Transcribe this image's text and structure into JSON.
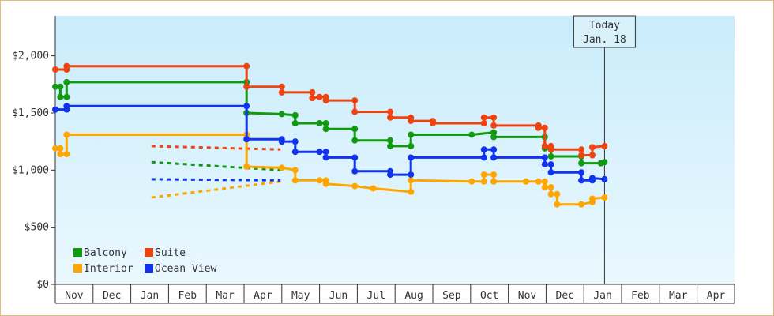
{
  "chart_data": {
    "type": "line",
    "title": "",
    "xlabel": "",
    "ylabel": "",
    "x_tick_labels": [
      "Nov",
      "Dec",
      "Jan",
      "Feb",
      "Mar",
      "Apr",
      "May",
      "Jun",
      "Jul",
      "Aug",
      "Sep",
      "Oct",
      "Nov",
      "Dec",
      "Jan",
      "Feb",
      "Mar",
      "Apr"
    ],
    "y_tick_labels": [
      "$0",
      "$500",
      "$1,000",
      "$1,500",
      "$2,000"
    ],
    "y_ticks": [
      0,
      500,
      1000,
      1500,
      2000
    ],
    "ylim": [
      0,
      2350
    ],
    "xlim": [
      "Nov 1",
      "Apr 30"
    ],
    "today_marker": {
      "line1": "Today",
      "line2": "Jan. 18",
      "date": "Jan 18"
    },
    "grid": false,
    "legend_position": "bottom-left",
    "series": [
      {
        "name": "Balcony",
        "color": "#119911",
        "points": [
          [
            "Nov 1",
            1730
          ],
          [
            "Nov 5",
            1730
          ],
          [
            "Nov 5",
            1640
          ],
          [
            "Nov 10",
            1640
          ],
          [
            "Nov 10",
            1770
          ],
          [
            "Apr 3",
            1770
          ],
          [
            "Apr 3",
            1500
          ],
          [
            "May 1",
            1490
          ],
          [
            "May 12",
            1480
          ],
          [
            "May 12",
            1410
          ],
          [
            "Jun 1",
            1410
          ],
          [
            "Jun 6",
            1410
          ],
          [
            "Jun 6",
            1360
          ],
          [
            "Jun 29",
            1360
          ],
          [
            "Jun 29",
            1260
          ],
          [
            "Jul 28",
            1260
          ],
          [
            "Jul 28",
            1210
          ],
          [
            "Aug 14",
            1210
          ],
          [
            "Aug 14",
            1310
          ],
          [
            "Oct 2",
            1310
          ],
          [
            "Oct 20",
            1330
          ],
          [
            "Oct 20",
            1290
          ],
          [
            "Nov 30",
            1290
          ],
          [
            "Nov 30",
            1190
          ],
          [
            "Dec 5",
            1190
          ],
          [
            "Dec 5",
            1120
          ],
          [
            "Dec 30",
            1120
          ],
          [
            "Dec 30",
            1060
          ],
          [
            "Jan 15",
            1060
          ],
          [
            "Jan 18",
            1070
          ]
        ],
        "forecast": [
          [
            "Jan 18",
            1070
          ],
          [
            "Apr 30",
            1000
          ]
        ]
      },
      {
        "name": "Suite",
        "color": "#ee4411",
        "points": [
          [
            "Nov 1",
            1880
          ],
          [
            "Nov 10",
            1880
          ],
          [
            "Nov 10",
            1910
          ],
          [
            "Apr 3",
            1910
          ],
          [
            "Apr 3",
            1730
          ],
          [
            "May 1",
            1730
          ],
          [
            "May 1",
            1680
          ],
          [
            "May 26",
            1680
          ],
          [
            "May 26",
            1630
          ],
          [
            "Jun 1",
            1640
          ],
          [
            "Jun 6",
            1640
          ],
          [
            "Jun 6",
            1610
          ],
          [
            "Jun 29",
            1610
          ],
          [
            "Jun 29",
            1510
          ],
          [
            "Jul 28",
            1510
          ],
          [
            "Jul 28",
            1460
          ],
          [
            "Aug 14",
            1460
          ],
          [
            "Aug 14",
            1430
          ],
          [
            "Sep 1",
            1430
          ],
          [
            "Sep 1",
            1410
          ],
          [
            "Oct 12",
            1410
          ],
          [
            "Oct 12",
            1460
          ],
          [
            "Oct 20",
            1460
          ],
          [
            "Oct 20",
            1390
          ],
          [
            "Nov 25",
            1390
          ],
          [
            "Nov 25",
            1370
          ],
          [
            "Nov 30",
            1370
          ],
          [
            "Nov 30",
            1210
          ],
          [
            "Dec 5",
            1210
          ],
          [
            "Dec 5",
            1180
          ],
          [
            "Dec 30",
            1180
          ],
          [
            "Dec 30",
            1130
          ],
          [
            "Jan 8",
            1130
          ],
          [
            "Jan 8",
            1200
          ],
          [
            "Jan 18",
            1210
          ]
        ],
        "forecast": [
          [
            "Jan 18",
            1210
          ],
          [
            "Apr 30",
            1180
          ]
        ]
      },
      {
        "name": "Interior",
        "color": "#ffa500",
        "points": [
          [
            "Nov 1",
            1190
          ],
          [
            "Nov 5",
            1190
          ],
          [
            "Nov 5",
            1140
          ],
          [
            "Nov 10",
            1140
          ],
          [
            "Nov 10",
            1310
          ],
          [
            "Apr 3",
            1310
          ],
          [
            "Apr 3",
            1030
          ],
          [
            "May 1",
            1020
          ],
          [
            "May 12",
            1000
          ],
          [
            "May 12",
            910
          ],
          [
            "Jun 1",
            910
          ],
          [
            "Jun 6",
            910
          ],
          [
            "Jun 6",
            880
          ],
          [
            "Jun 29",
            860
          ],
          [
            "Jul 14",
            840
          ],
          [
            "Aug 14",
            810
          ],
          [
            "Aug 14",
            910
          ],
          [
            "Oct 2",
            900
          ],
          [
            "Oct 12",
            900
          ],
          [
            "Oct 12",
            960
          ],
          [
            "Oct 20",
            960
          ],
          [
            "Oct 20",
            900
          ],
          [
            "Nov 15",
            900
          ],
          [
            "Nov 25",
            900
          ],
          [
            "Nov 30",
            900
          ],
          [
            "Nov 30",
            850
          ],
          [
            "Dec 5",
            850
          ],
          [
            "Dec 5",
            790
          ],
          [
            "Dec 10",
            790
          ],
          [
            "Dec 10",
            700
          ],
          [
            "Dec 30",
            700
          ],
          [
            "Jan 8",
            720
          ],
          [
            "Jan 8",
            750
          ],
          [
            "Jan 18",
            760
          ]
        ],
        "forecast": [
          [
            "Jan 18",
            760
          ],
          [
            "Apr 30",
            900
          ]
        ]
      },
      {
        "name": "Ocean View",
        "color": "#1133ee",
        "points": [
          [
            "Nov 1",
            1530
          ],
          [
            "Nov 10",
            1530
          ],
          [
            "Nov 10",
            1560
          ],
          [
            "Apr 3",
            1560
          ],
          [
            "Apr 3",
            1270
          ],
          [
            "May 1",
            1270
          ],
          [
            "May 1",
            1250
          ],
          [
            "May 12",
            1250
          ],
          [
            "May 12",
            1160
          ],
          [
            "Jun 1",
            1160
          ],
          [
            "Jun 6",
            1160
          ],
          [
            "Jun 6",
            1110
          ],
          [
            "Jun 29",
            1110
          ],
          [
            "Jun 29",
            990
          ],
          [
            "Jul 28",
            990
          ],
          [
            "Jul 28",
            960
          ],
          [
            "Aug 14",
            960
          ],
          [
            "Aug 14",
            1110
          ],
          [
            "Oct 12",
            1110
          ],
          [
            "Oct 12",
            1180
          ],
          [
            "Oct 20",
            1180
          ],
          [
            "Oct 20",
            1110
          ],
          [
            "Nov 30",
            1110
          ],
          [
            "Nov 30",
            1050
          ],
          [
            "Dec 5",
            1050
          ],
          [
            "Dec 5",
            980
          ],
          [
            "Dec 30",
            980
          ],
          [
            "Dec 30",
            910
          ],
          [
            "Jan 8",
            910
          ],
          [
            "Jan 8",
            930
          ],
          [
            "Jan 18",
            920
          ]
        ],
        "forecast": [
          [
            "Jan 18",
            920
          ],
          [
            "Apr 30",
            910
          ]
        ]
      }
    ]
  },
  "colors": {
    "plot_bg_top": "#c9ecfb",
    "plot_bg_bottom": "#eaf8fe",
    "frame_border": "#e8b978"
  }
}
